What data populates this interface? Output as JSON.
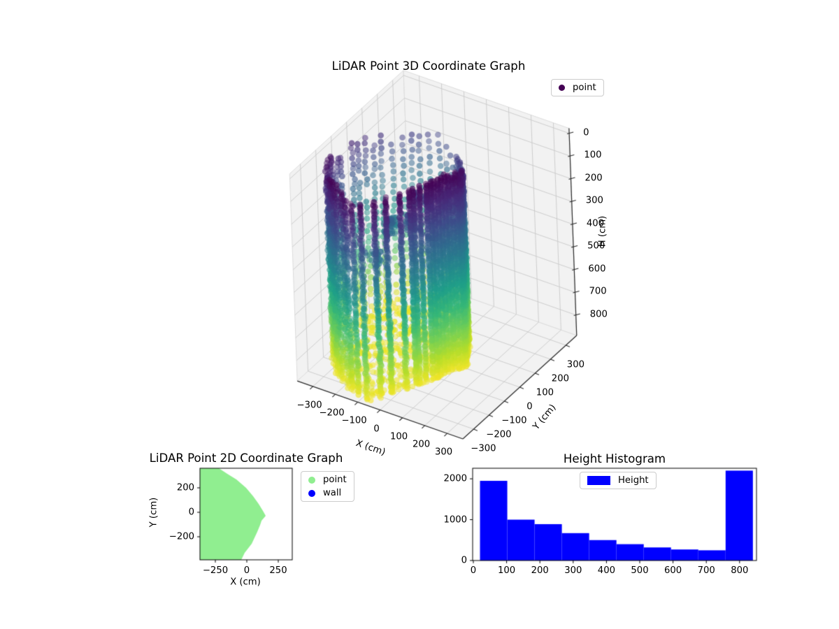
{
  "figure": {
    "background": "#ffffff"
  },
  "chart_data": [
    {
      "type": "scatter3d",
      "title": "LiDAR Point 3D Coordinate Graph",
      "xlabel": "X (cm)",
      "ylabel": "Y (cm)",
      "zlabel": "H (cm)",
      "xticks": [
        -300,
        -200,
        -100,
        0,
        100,
        200,
        300
      ],
      "yticks": [
        -300,
        -200,
        -100,
        0,
        100,
        200,
        300
      ],
      "zticks": [
        0,
        100,
        200,
        300,
        400,
        500,
        600,
        700,
        800
      ],
      "xlim": [
        -370,
        370
      ],
      "ylim": [
        -370,
        370
      ],
      "zlim": [
        -22,
        890
      ],
      "z_axis_inverted": true,
      "legend": [
        {
          "label": "point",
          "color": "#440154",
          "marker": "circle"
        }
      ],
      "colormap": "viridis",
      "viridis_stops": [
        "#440154",
        "#482878",
        "#3e4989",
        "#31688e",
        "#26828e",
        "#1f9e89",
        "#35b779",
        "#6ece58",
        "#b5de2b",
        "#fde725"
      ],
      "point_alpha": 0.55,
      "h_range_cm": [
        0,
        880
      ],
      "floor_h_cm": [
        842,
        872
      ],
      "n_scan_columns": 66,
      "room_outline_xy_cm": [
        [
          -372,
          360
        ],
        [
          -222,
          360
        ],
        [
          -155,
          314
        ],
        [
          -83,
          268
        ],
        [
          -6,
          200
        ],
        [
          50,
          131
        ],
        [
          94,
          68
        ],
        [
          128,
          11
        ],
        [
          150,
          -28
        ],
        [
          117,
          -68
        ],
        [
          106,
          -103
        ],
        [
          83,
          -160
        ],
        [
          39,
          -257
        ],
        [
          -17,
          -331
        ],
        [
          -44,
          -388
        ],
        [
          -372,
          -388
        ]
      ],
      "interior_clusters_xyh": [
        [
          -30,
          -60,
          170,
          30
        ],
        [
          30,
          -110,
          220,
          26
        ],
        [
          -110,
          -140,
          280,
          24
        ],
        [
          70,
          -30,
          150,
          22
        ],
        [
          -60,
          -230,
          320,
          20
        ],
        [
          -150,
          40,
          360,
          18
        ]
      ]
    },
    {
      "type": "scatter",
      "title": "LiDAR Point 2D Coordinate Graph",
      "xlabel": "X (cm)",
      "ylabel": "Y (cm)",
      "xticks": [
        -250,
        0,
        250
      ],
      "yticks": [
        -200,
        0,
        200
      ],
      "xlim": [
        -372,
        361
      ],
      "ylim": [
        -388,
        360
      ],
      "legend": [
        {
          "label": "point",
          "color": "#90EE90",
          "marker": "circle"
        },
        {
          "label": "wall",
          "color": "#0000FF",
          "marker": "circle"
        }
      ],
      "point_color": "#90EE90",
      "region_polygon_xy_cm": [
        [
          -372,
          360
        ],
        [
          -222,
          360
        ],
        [
          -155,
          314
        ],
        [
          -83,
          268
        ],
        [
          -6,
          200
        ],
        [
          50,
          131
        ],
        [
          94,
          68
        ],
        [
          128,
          11
        ],
        [
          150,
          -28
        ],
        [
          117,
          -68
        ],
        [
          106,
          -103
        ],
        [
          83,
          -160
        ],
        [
          39,
          -257
        ],
        [
          -17,
          -331
        ],
        [
          -44,
          -388
        ],
        [
          -372,
          -388
        ]
      ]
    },
    {
      "type": "bar",
      "title": "Height Histogram",
      "legend": [
        {
          "label": "Height",
          "color": "#0000FF",
          "marker": "square"
        }
      ],
      "bar_color": "#0000FF",
      "bin_edges": [
        20,
        102,
        184,
        266,
        348,
        430,
        512,
        594,
        676,
        758,
        840
      ],
      "values": [
        1950,
        1000,
        890,
        670,
        500,
        400,
        320,
        270,
        250,
        2200
      ],
      "xticks": [
        0,
        100,
        200,
        300,
        400,
        500,
        600,
        700,
        800
      ],
      "yticks": [
        0,
        1000,
        2000
      ],
      "xlim": [
        -2,
        851
      ],
      "ylim": [
        0,
        2256
      ]
    }
  ]
}
